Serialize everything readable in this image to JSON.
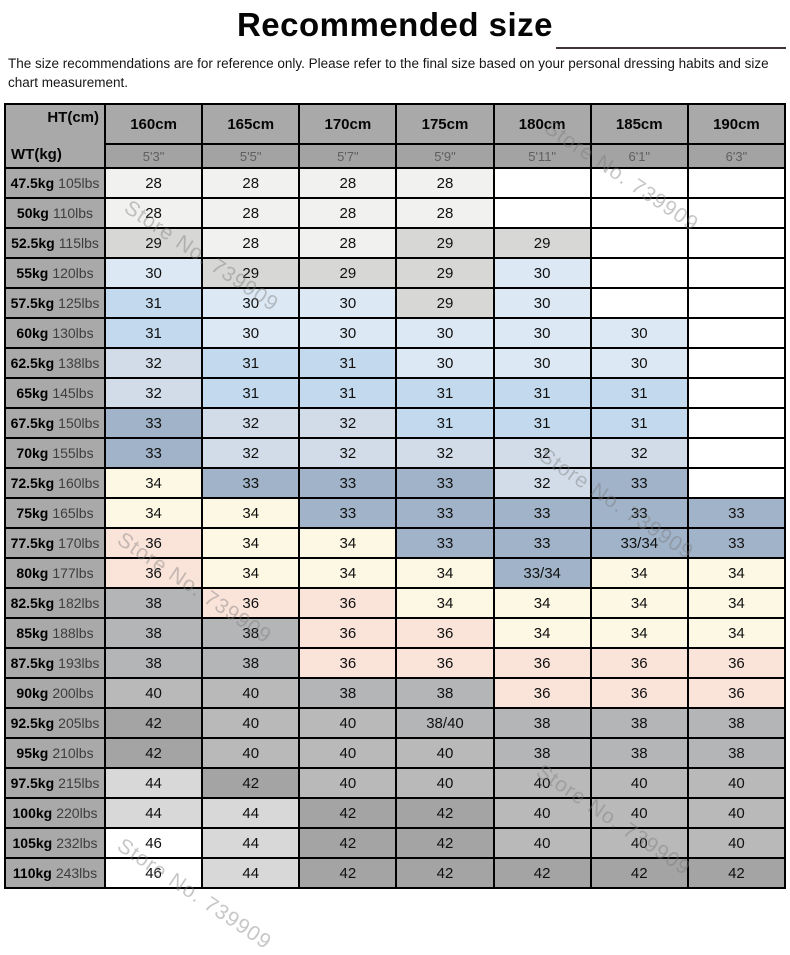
{
  "title": "Recommended size",
  "disclaimer": "The size recommendations are for reference only. Please refer to the final size based on your personal dressing habits and size chart measurement.",
  "watermark": "Store No. 739909",
  "corner": {
    "top": "HT(cm)",
    "bottom": "WT(kg)"
  },
  "chart_data": {
    "type": "table",
    "title": "Recommended size",
    "height_columns_cm": [
      "160cm",
      "165cm",
      "170cm",
      "175cm",
      "180cm",
      "185cm",
      "190cm"
    ],
    "height_columns_ft": [
      "5'3\"",
      "5'5\"",
      "5'7\"",
      "5'9\"",
      "5'11\"",
      "6'1\"",
      "6'3\""
    ],
    "rows": [
      {
        "kg": "47.5kg",
        "lbs": "105lbs",
        "sizes": [
          "28",
          "28",
          "28",
          "28",
          "",
          "",
          ""
        ]
      },
      {
        "kg": "50kg",
        "lbs": "110lbs",
        "sizes": [
          "28",
          "28",
          "28",
          "28",
          "",
          "",
          ""
        ]
      },
      {
        "kg": "52.5kg",
        "lbs": "115lbs",
        "sizes": [
          "29",
          "28",
          "28",
          "29",
          "29",
          "",
          ""
        ]
      },
      {
        "kg": "55kg",
        "lbs": "120lbs",
        "sizes": [
          "30",
          "29",
          "29",
          "29",
          "30",
          "",
          ""
        ]
      },
      {
        "kg": "57.5kg",
        "lbs": "125lbs",
        "sizes": [
          "31",
          "30",
          "30",
          "29",
          "30",
          "",
          ""
        ]
      },
      {
        "kg": "60kg",
        "lbs": "130lbs",
        "sizes": [
          "31",
          "30",
          "30",
          "30",
          "30",
          "30",
          ""
        ]
      },
      {
        "kg": "62.5kg",
        "lbs": "138lbs",
        "sizes": [
          "32",
          "31",
          "31",
          "30",
          "30",
          "30",
          ""
        ]
      },
      {
        "kg": "65kg",
        "lbs": "145lbs",
        "sizes": [
          "32",
          "31",
          "31",
          "31",
          "31",
          "31",
          ""
        ]
      },
      {
        "kg": "67.5kg",
        "lbs": "150lbs",
        "sizes": [
          "33",
          "32",
          "32",
          "31",
          "31",
          "31",
          ""
        ]
      },
      {
        "kg": "70kg",
        "lbs": "155lbs",
        "sizes": [
          "33",
          "32",
          "32",
          "32",
          "32",
          "32",
          ""
        ]
      },
      {
        "kg": "72.5kg",
        "lbs": "160lbs",
        "sizes": [
          "34",
          "33",
          "33",
          "33",
          "32",
          "33",
          ""
        ]
      },
      {
        "kg": "75kg",
        "lbs": "165lbs",
        "sizes": [
          "34",
          "34",
          "33",
          "33",
          "33",
          "33",
          "33"
        ]
      },
      {
        "kg": "77.5kg",
        "lbs": "170lbs",
        "sizes": [
          "36",
          "34",
          "34",
          "33",
          "33",
          "33/34",
          "33"
        ]
      },
      {
        "kg": "80kg",
        "lbs": "177lbs",
        "sizes": [
          "36",
          "34",
          "34",
          "34",
          "33/34",
          "34",
          "34"
        ]
      },
      {
        "kg": "82.5kg",
        "lbs": "182lbs",
        "sizes": [
          "38",
          "36",
          "36",
          "34",
          "34",
          "34",
          "34"
        ]
      },
      {
        "kg": "85kg",
        "lbs": "188lbs",
        "sizes": [
          "38",
          "38",
          "36",
          "36",
          "34",
          "34",
          "34"
        ]
      },
      {
        "kg": "87.5kg",
        "lbs": "193lbs",
        "sizes": [
          "38",
          "38",
          "36",
          "36",
          "36",
          "36",
          "36"
        ]
      },
      {
        "kg": "90kg",
        "lbs": "200lbs",
        "sizes": [
          "40",
          "40",
          "38",
          "38",
          "36",
          "36",
          "36"
        ]
      },
      {
        "kg": "92.5kg",
        "lbs": "205lbs",
        "sizes": [
          "42",
          "40",
          "40",
          "38/40",
          "38",
          "38",
          "38"
        ]
      },
      {
        "kg": "95kg",
        "lbs": "210lbs",
        "sizes": [
          "42",
          "40",
          "40",
          "40",
          "38",
          "38",
          "38"
        ]
      },
      {
        "kg": "97.5kg",
        "lbs": "215lbs",
        "sizes": [
          "44",
          "42",
          "40",
          "40",
          "40",
          "40",
          "40"
        ]
      },
      {
        "kg": "100kg",
        "lbs": "220lbs",
        "sizes": [
          "44",
          "44",
          "42",
          "42",
          "40",
          "40",
          "40"
        ]
      },
      {
        "kg": "105kg",
        "lbs": "232lbs",
        "sizes": [
          "46",
          "44",
          "42",
          "42",
          "40",
          "40",
          "40"
        ]
      },
      {
        "kg": "110kg",
        "lbs": "243lbs",
        "sizes": [
          "46",
          "44",
          "42",
          "42",
          "42",
          "42",
          "42"
        ]
      }
    ]
  },
  "size_colors": {
    "28": "#f1f1ef",
    "29": "#d7d7d5",
    "30": "#dce8f4",
    "31": "#c3d9ee",
    "32": "#d2dce8",
    "33": "#a1b3c8",
    "33/34": "#a1b3c8",
    "34": "#fdf8e3",
    "36": "#fae4da",
    "38": "#b3b5b6",
    "38/40": "#b3b5b6",
    "40": "#b9b9b9",
    "42": "#a4a4a4",
    "44": "#d8d8d8",
    "46": "#ffffff",
    "": "#ffffff"
  },
  "structure_colors": {
    "header_bg": "#a9a9a9",
    "subheader_bg": "#a3a3a3",
    "border": "#000000"
  }
}
